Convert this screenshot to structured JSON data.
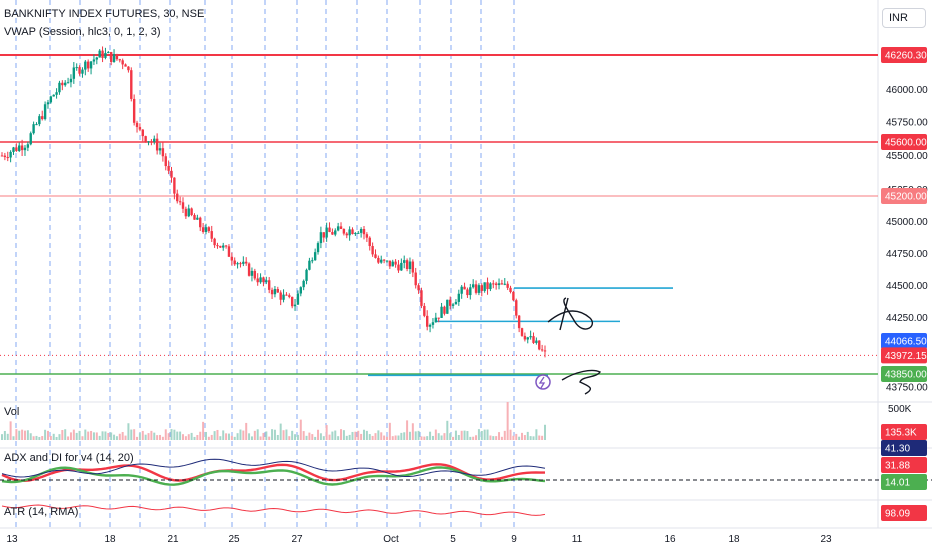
{
  "chart_header": {
    "symbol_line": "BANKNIFTY INDEX FUTURES, 30, NSE",
    "vwap_label": "VWAP (Session, hlc3, 0, 1, 2, 3)",
    "currency": "INR"
  },
  "chart_data": {
    "type": "candlestick",
    "title": "BANKNIFTY INDEX FUTURES, 30, NSE",
    "x_tick_labels": [
      "13",
      "18",
      "21",
      "25",
      "27",
      "Oct",
      "5",
      "9",
      "11",
      "16",
      "18",
      "23"
    ],
    "price_axis_ticks": [
      "46000.00",
      "45750.00",
      "45500.00",
      "45250.00",
      "45000.00",
      "44750.00",
      "44500.00",
      "44250.00",
      "43750.00"
    ],
    "price_range": [
      43650,
      46450
    ],
    "last_close": 43972.15,
    "close_path": [
      {
        "t": 0,
        "price": 45500
      },
      {
        "t": 0.03,
        "price": 45600
      },
      {
        "t": 0.06,
        "price": 45950
      },
      {
        "t": 0.09,
        "price": 46150
      },
      {
        "t": 0.12,
        "price": 46270
      },
      {
        "t": 0.15,
        "price": 46200
      },
      {
        "t": 0.16,
        "price": 45700
      },
      {
        "t": 0.19,
        "price": 45550
      },
      {
        "t": 0.21,
        "price": 45150
      },
      {
        "t": 0.25,
        "price": 44880
      },
      {
        "t": 0.28,
        "price": 44700
      },
      {
        "t": 0.32,
        "price": 44480
      },
      {
        "t": 0.35,
        "price": 44350
      },
      {
        "t": 0.38,
        "price": 44900
      },
      {
        "t": 0.43,
        "price": 44950
      },
      {
        "t": 0.45,
        "price": 44680
      },
      {
        "t": 0.49,
        "price": 44650
      },
      {
        "t": 0.51,
        "price": 44200
      },
      {
        "t": 0.55,
        "price": 44450
      },
      {
        "t": 0.59,
        "price": 44500
      },
      {
        "t": 0.61,
        "price": 44480
      },
      {
        "t": 0.62,
        "price": 44150
      },
      {
        "t": 0.65,
        "price": 43972
      }
    ],
    "horizontal_levels": [
      {
        "label": "46260.30",
        "color": "#f23645"
      },
      {
        "label": "45600.00",
        "color": "#f23645"
      },
      {
        "label": "45200.00",
        "color": "#f77c80"
      },
      {
        "label": "44066.50",
        "color": "#2962ff"
      },
      {
        "label": "43972.15",
        "color": "#f23645"
      },
      {
        "label": "43850.00",
        "color": "#4caf50"
      }
    ],
    "trend_lines": [
      {
        "price": 44480,
        "color": "#22a6d4"
      },
      {
        "price": 44220,
        "color": "#22a6d4"
      },
      {
        "price": 43840,
        "color": "#22a6d4"
      }
    ],
    "volume": {
      "label": "Vol",
      "axis_tick": "500K",
      "last_value": "135.3K"
    },
    "adx": {
      "label": "ADX and DI for v4 (14, 20)",
      "values": [
        "41.30",
        "31.88",
        "14.01"
      ],
      "colors": [
        "#1e2a78",
        "#f23645",
        "#4caf50"
      ]
    },
    "atr": {
      "label": "ATR (14, RMA)",
      "value": "98.09",
      "color": "#f23645"
    }
  }
}
